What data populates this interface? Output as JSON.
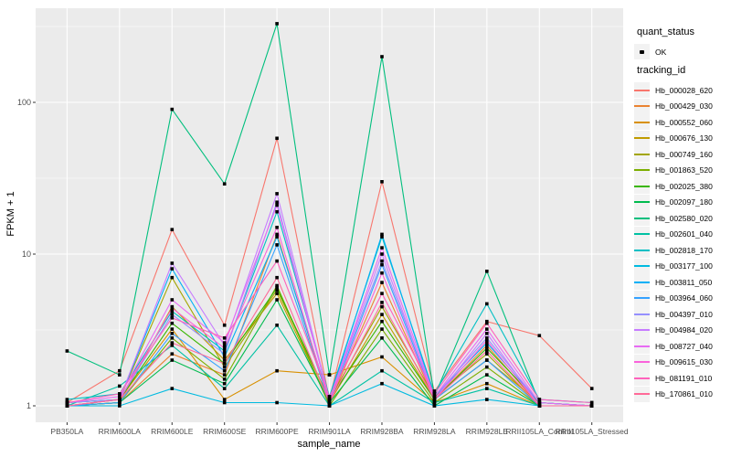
{
  "figure": {
    "xlabel": "sample_name",
    "ylabel": "FPKM + 1"
  },
  "legend": {
    "quant_status_title": "quant_status",
    "quant_status_items": [
      {
        "label": "OK",
        "marker": "black-point-icon"
      }
    ],
    "tracking_title": "tracking_id"
  },
  "chart_data": {
    "type": "line",
    "title": "",
    "xlabel": "sample_name",
    "ylabel": "FPKM + 1",
    "y_scale": "log10",
    "y_ticks": [
      1,
      10,
      100
    ],
    "y_minor_ticks": [
      3.162,
      31.62,
      316.2
    ],
    "ylim": [
      0.78,
      420
    ],
    "grid": true,
    "legend_position": "right",
    "style": {
      "panel_bg": "#EBEBEB",
      "grid_color": "#FFFFFF",
      "point_color": "#000000",
      "tick_color": "#333333",
      "tick_label_color": "#4D4D4D"
    },
    "x_categories": [
      "PB350LA",
      "RRIM600LA",
      "RRIM600LE",
      "RRIM600SE",
      "RRIM600PE",
      "RRIM901LA",
      "RRIM928BA",
      "RRIM928LA",
      "RRIM928LE",
      "RRII105LA_Control",
      "RRII105LA_Stressed"
    ],
    "series": [
      {
        "name": "Hb_000028_620",
        "color": "#F8766D",
        "values": [
          1.05,
          1.7,
          14.5,
          3.4,
          58,
          1.1,
          30,
          1.25,
          3.6,
          2.9,
          1.3
        ]
      },
      {
        "name": "Hb_000429_030",
        "color": "#EA8331",
        "values": [
          1.0,
          1.05,
          2.2,
          1.6,
          13.5,
          1.05,
          6.5,
          1.1,
          2.5,
          1.0,
          1.0
        ]
      },
      {
        "name": "Hb_000552_060",
        "color": "#D89000",
        "values": [
          1.0,
          1.1,
          3.2,
          1.1,
          1.7,
          1.6,
          2.1,
          1.05,
          1.4,
          1.0,
          1.0
        ]
      },
      {
        "name": "Hb_000676_130",
        "color": "#C09B00",
        "values": [
          1.0,
          1.05,
          4.5,
          2.0,
          5.5,
          1.05,
          4.0,
          1.1,
          2.0,
          1.05,
          1.0
        ]
      },
      {
        "name": "Hb_000749_160",
        "color": "#A3A500",
        "values": [
          1.0,
          1.1,
          7.0,
          1.8,
          5.8,
          1.1,
          4.5,
          1.15,
          2.2,
          1.0,
          1.0
        ]
      },
      {
        "name": "Hb_001863_520",
        "color": "#7CAE00",
        "values": [
          1.0,
          1.05,
          2.8,
          1.5,
          6.2,
          1.0,
          3.2,
          1.05,
          1.8,
          1.0,
          1.0
        ]
      },
      {
        "name": "Hb_002025_380",
        "color": "#39B600",
        "values": [
          1.05,
          1.1,
          3.5,
          1.9,
          6.0,
          1.1,
          3.6,
          1.1,
          2.4,
          1.05,
          1.0
        ]
      },
      {
        "name": "Hb_002097_180",
        "color": "#00BB4E",
        "values": [
          1.0,
          1.05,
          2.0,
          1.4,
          5.0,
          1.05,
          2.8,
          1.0,
          1.6,
          1.0,
          1.0
        ]
      },
      {
        "name": "Hb_002580_020",
        "color": "#00BF7D",
        "values": [
          2.3,
          1.6,
          90,
          29,
          330,
          1.6,
          200,
          1.15,
          7.7,
          1.05,
          1.0
        ]
      },
      {
        "name": "Hb_002601_040",
        "color": "#00C1A3",
        "values": [
          1.0,
          1.35,
          2.5,
          1.3,
          3.4,
          1.0,
          1.7,
          1.05,
          1.3,
          1.0,
          1.0
        ]
      },
      {
        "name": "Hb_002818_170",
        "color": "#00BFC4",
        "values": [
          1.1,
          1.2,
          4.2,
          2.3,
          19,
          1.15,
          13,
          1.2,
          4.7,
          1.1,
          1.05
        ]
      },
      {
        "name": "Hb_003177_100",
        "color": "#00BAE0",
        "values": [
          1.0,
          1.0,
          1.3,
          1.05,
          1.05,
          1.0,
          1.4,
          1.0,
          1.1,
          1.0,
          1.0
        ]
      },
      {
        "name": "Hb_003811_050",
        "color": "#00B0F6",
        "values": [
          1.05,
          1.1,
          8.0,
          2.1,
          13,
          1.1,
          13.5,
          1.15,
          2.6,
          1.05,
          1.0
        ]
      },
      {
        "name": "Hb_003964_060",
        "color": "#35A2FF",
        "values": [
          1.0,
          1.05,
          3.0,
          1.7,
          11.5,
          1.05,
          8.5,
          1.1,
          2.0,
          1.0,
          1.0
        ]
      },
      {
        "name": "Hb_004397_010",
        "color": "#9590FF",
        "values": [
          1.05,
          1.1,
          4.0,
          2.2,
          22,
          1.1,
          9.0,
          1.15,
          2.8,
          1.05,
          1.0
        ]
      },
      {
        "name": "Hb_004984_020",
        "color": "#C77CFF",
        "values": [
          1.0,
          1.1,
          8.7,
          2.5,
          25,
          1.1,
          10,
          1.1,
          3.0,
          1.0,
          1.0
        ]
      },
      {
        "name": "Hb_008727_040",
        "color": "#E76BF3",
        "values": [
          1.05,
          1.15,
          5.0,
          2.6,
          21,
          1.1,
          11,
          1.15,
          3.2,
          1.05,
          1.0
        ]
      },
      {
        "name": "Hb_009615_030",
        "color": "#FA62DB",
        "values": [
          1.0,
          1.1,
          4.4,
          2.4,
          15,
          1.05,
          7.5,
          1.1,
          2.7,
          1.0,
          1.0
        ]
      },
      {
        "name": "Hb_081191_010",
        "color": "#FF62BC",
        "values": [
          1.05,
          1.2,
          3.8,
          2.8,
          9.0,
          1.15,
          5.5,
          1.2,
          3.5,
          1.1,
          1.05
        ]
      },
      {
        "name": "Hb_170861_010",
        "color": "#FF6A98",
        "values": [
          1.0,
          1.1,
          2.6,
          1.9,
          7.0,
          1.05,
          4.8,
          1.1,
          2.3,
          1.0,
          1.0
        ]
      }
    ]
  }
}
